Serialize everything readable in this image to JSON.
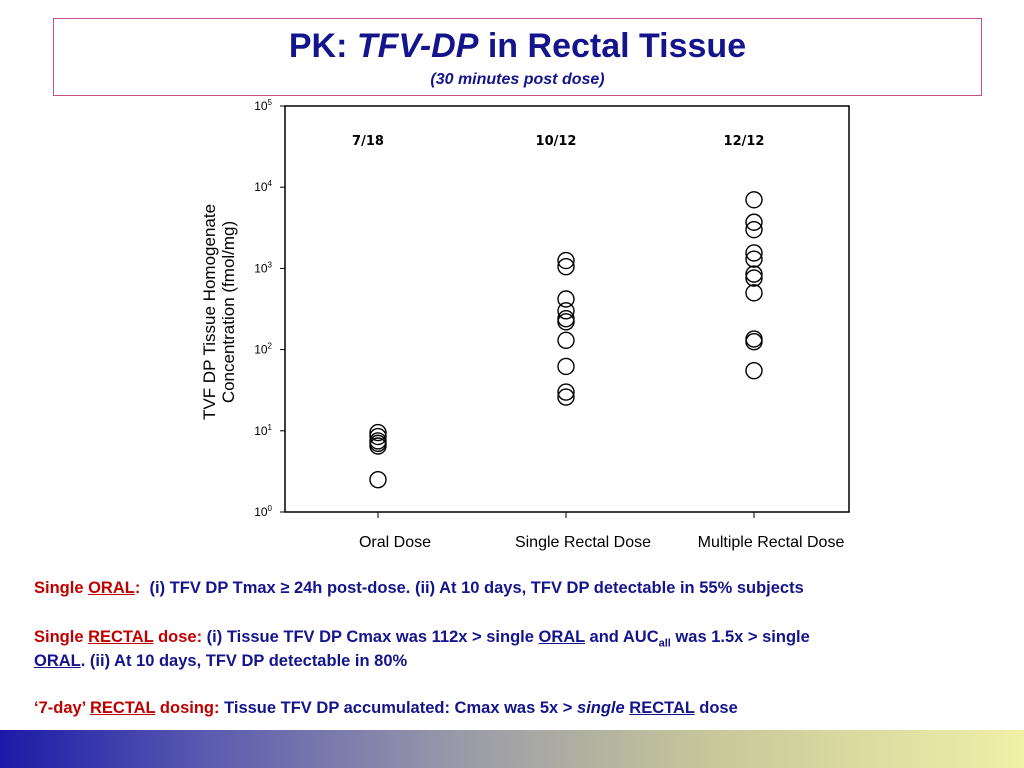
{
  "title": {
    "prefix": "PK:",
    "italic": "TFV-DP",
    "suffix": "in Rectal Tissue",
    "subtitle": "(30 minutes post dose)"
  },
  "chart_data": {
    "type": "scatter",
    "yscale": "log",
    "ylim": [
      1,
      100000
    ],
    "ylabel_lines": [
      "TVF DP Tissue Homogenate",
      "Concentration (fmol/mg)"
    ],
    "yticks": [
      {
        "base": "10",
        "exp": "0"
      },
      {
        "base": "10",
        "exp": "1"
      },
      {
        "base": "10",
        "exp": "2"
      },
      {
        "base": "10",
        "exp": "3"
      },
      {
        "base": "10",
        "exp": "4"
      },
      {
        "base": "10",
        "exp": "5"
      }
    ],
    "categories": [
      "Oral Dose",
      "Single Rectal Dose",
      "Multiple Rectal Dose"
    ],
    "group_labels": [
      "7/18",
      "10/12",
      "12/12"
    ],
    "series": [
      {
        "values": [
          9.5,
          8.5,
          7.5,
          7.0,
          6.5,
          2.5
        ]
      },
      {
        "values": [
          1250,
          1050,
          420,
          300,
          240,
          220,
          130,
          62,
          30,
          26
        ]
      },
      {
        "values": [
          7000,
          3700,
          3000,
          1550,
          1300,
          850,
          760,
          500,
          135,
          125,
          55
        ]
      }
    ],
    "marker": "open-circle",
    "marker_color": "#000000"
  },
  "notes": {
    "oral": {
      "label_pre": "Single ",
      "label_u": "ORAL",
      "label_post": ":",
      "text": "(i) TFV DP Tmax ≥ 24h post-dose. (ii) At 10 days, TFV DP detectable in 55% subjects"
    },
    "rectal": {
      "label_pre": "Single ",
      "label_u": "RECTAL",
      "label_post": " dose:",
      "text1": "(i) Tissue TFV DP Cmax was 112x > single ",
      "u1": "ORAL",
      "text2": " and AUC",
      "sub": "all",
      "text3": " was 1.5x > single",
      "line2_u": "ORAL",
      "line2_text": ". (ii) At 10 days, TFV DP detectable in 80%"
    },
    "seven_day": {
      "label_pre": "‘7-day’ ",
      "label_u": "RECTAL",
      "label_post": " dosing:",
      "text1": "Tissue TFV DP accumulated: Cmax was 5x > ",
      "italic": "single",
      "u1": "RECTAL",
      "text2": " dose"
    }
  },
  "colors": {
    "navy": "#14148c",
    "label_red": "#c00000",
    "title_border": "#c8508a"
  }
}
